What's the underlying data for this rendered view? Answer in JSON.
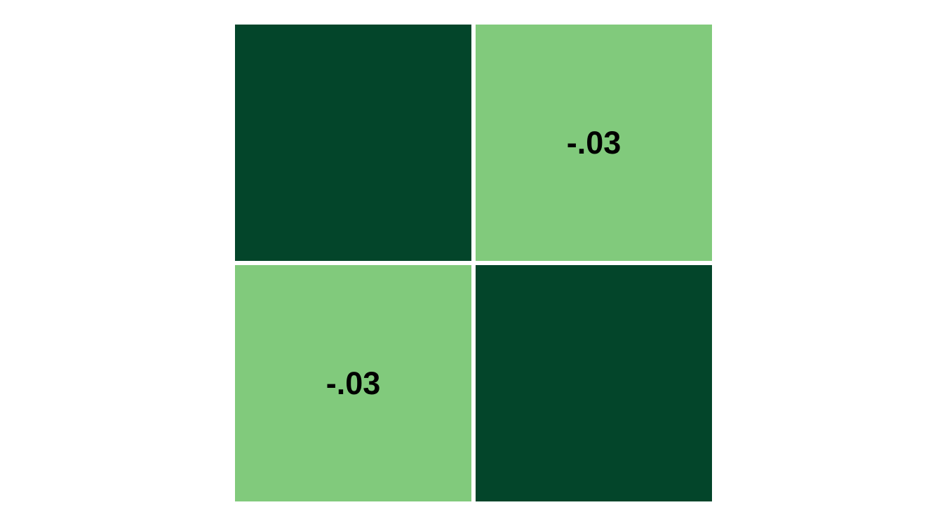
{
  "chart_data": {
    "type": "heatmap",
    "rows": 2,
    "cols": 2,
    "values": [
      [
        1.0,
        -0.03
      ],
      [
        -0.03,
        1.0
      ]
    ],
    "labels": [
      [
        "",
        "-.03"
      ],
      [
        "-.03",
        ""
      ]
    ],
    "colors": {
      "strong": "#03452a",
      "weak": "#81ca7c",
      "grid": "#ffffff"
    }
  }
}
